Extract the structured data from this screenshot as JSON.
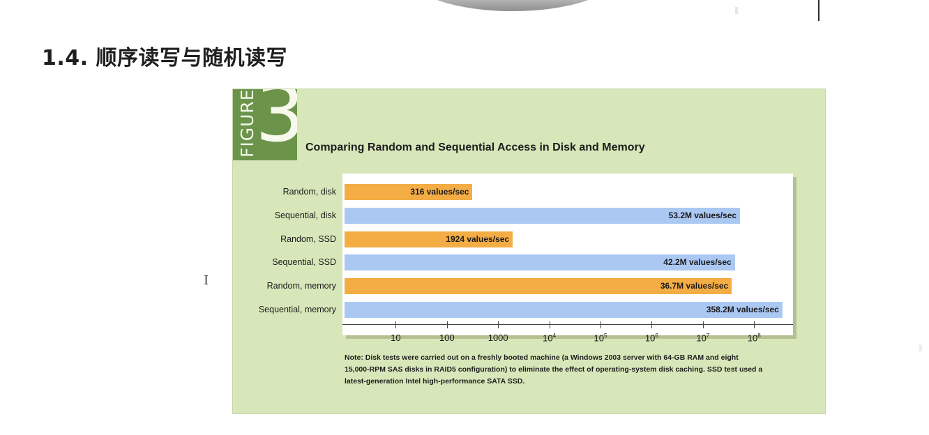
{
  "page": {
    "section_title": "1.4. 顺序读写与随机读写"
  },
  "figure": {
    "badge_word": "FIGURE",
    "badge_number": "3",
    "note": "Note: Disk tests were carried out on a freshly booted machine (a Windows 2003 server with 64-GB RAM and eight 15,000-RPM SAS disks in RAID5 configuration) to eliminate the effect of operating-system disk caching. SSD test used a latest-generation Intel high-performance SATA SSD."
  },
  "chart_data": {
    "type": "bar",
    "orientation": "horizontal",
    "title": "Comparing Random and Sequential Access in Disk and Memory",
    "x_scale": "log",
    "xlim": [
      1,
      1000000000
    ],
    "grid": false,
    "categories": [
      "Random, disk",
      "Sequential, disk",
      "Random, SSD",
      "Sequential, SSD",
      "Random, memory",
      "Sequential, memory"
    ],
    "values": [
      316,
      53200000,
      1924,
      42200000,
      36700000,
      358200000
    ],
    "value_labels": [
      "316 values/sec",
      "53.2M values/sec",
      "1924 values/sec",
      "42.2M values/sec",
      "36.7M values/sec",
      "358.2M values/sec"
    ],
    "bar_kind": [
      "random",
      "sequential",
      "random",
      "sequential",
      "random",
      "sequential"
    ],
    "colors": {
      "random": "#f4ad45",
      "sequential": "#aac8f2"
    },
    "ticks": [
      {
        "value": 10,
        "base": "10",
        "exp": ""
      },
      {
        "value": 100,
        "base": "100",
        "exp": ""
      },
      {
        "value": 1000,
        "base": "1000",
        "exp": ""
      },
      {
        "value": 10000,
        "base": "10",
        "exp": "4"
      },
      {
        "value": 100000,
        "base": "10",
        "exp": "5"
      },
      {
        "value": 1000000,
        "base": "10",
        "exp": "6"
      },
      {
        "value": 10000000,
        "base": "10",
        "exp": "7"
      },
      {
        "value": 100000000,
        "base": "10",
        "exp": "8"
      }
    ]
  },
  "colors": {
    "panel_bg": "#d8e7ba",
    "badge_bg": "#6b944a"
  }
}
